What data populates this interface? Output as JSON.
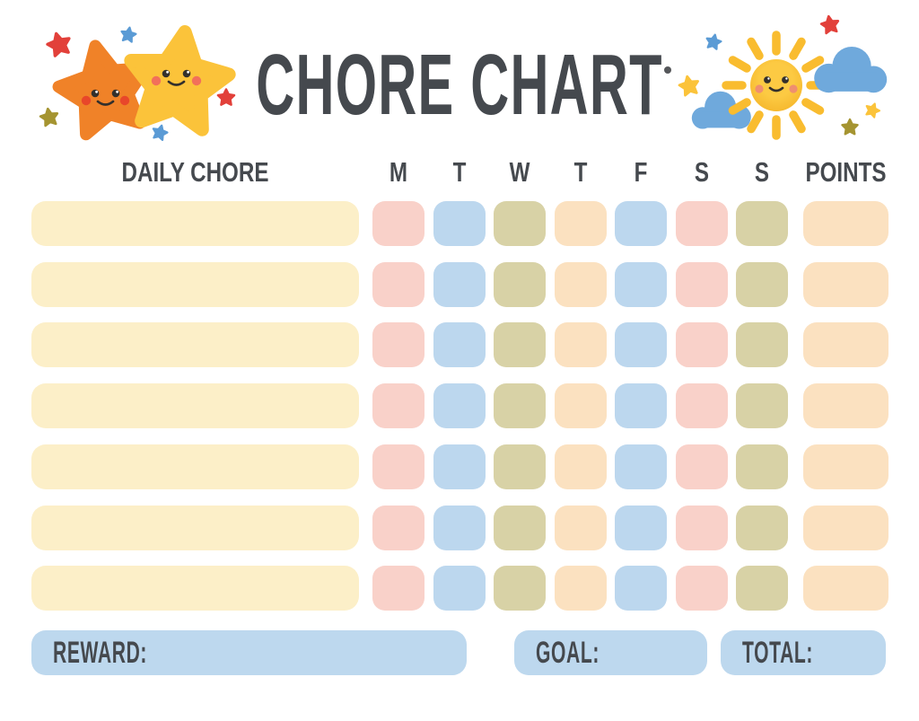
{
  "title": "CHORE CHART",
  "table": {
    "chore_column_header": "DAILY CHORE",
    "day_headers": [
      "M",
      "T",
      "W",
      "T",
      "F",
      "S",
      "S"
    ],
    "points_header": "POINTS",
    "row_count": 7,
    "day_color_pattern": [
      "pink",
      "blue",
      "olive",
      "peach",
      "blue",
      "pink",
      "olive"
    ],
    "points_color": "peach",
    "chore_field_color": "cream"
  },
  "footer": {
    "reward_label": "REWARD:",
    "goal_label": "GOAL:",
    "total_label": "TOTAL:"
  },
  "colors": {
    "text": "#45494E",
    "cream": "#FCEFC8",
    "pink": "#F9D1C9",
    "blue": "#BCD7EE",
    "olive": "#D8D2A6",
    "peach": "#FBE1C0",
    "footer_blue": "#BDD8EE",
    "star_orange": "#F08228",
    "star_yellow": "#FBC33A",
    "sun_yellow": "#F8BC32",
    "cloud_blue": "#6FA9DC",
    "accent_red": "#E2403A",
    "accent_blue": "#5B9BD5",
    "accent_olive": "#A59431"
  },
  "decorations": {
    "left": "two-smiling-stars-with-sparkles",
    "right": "smiling-sun-with-clouds-and-stars"
  }
}
